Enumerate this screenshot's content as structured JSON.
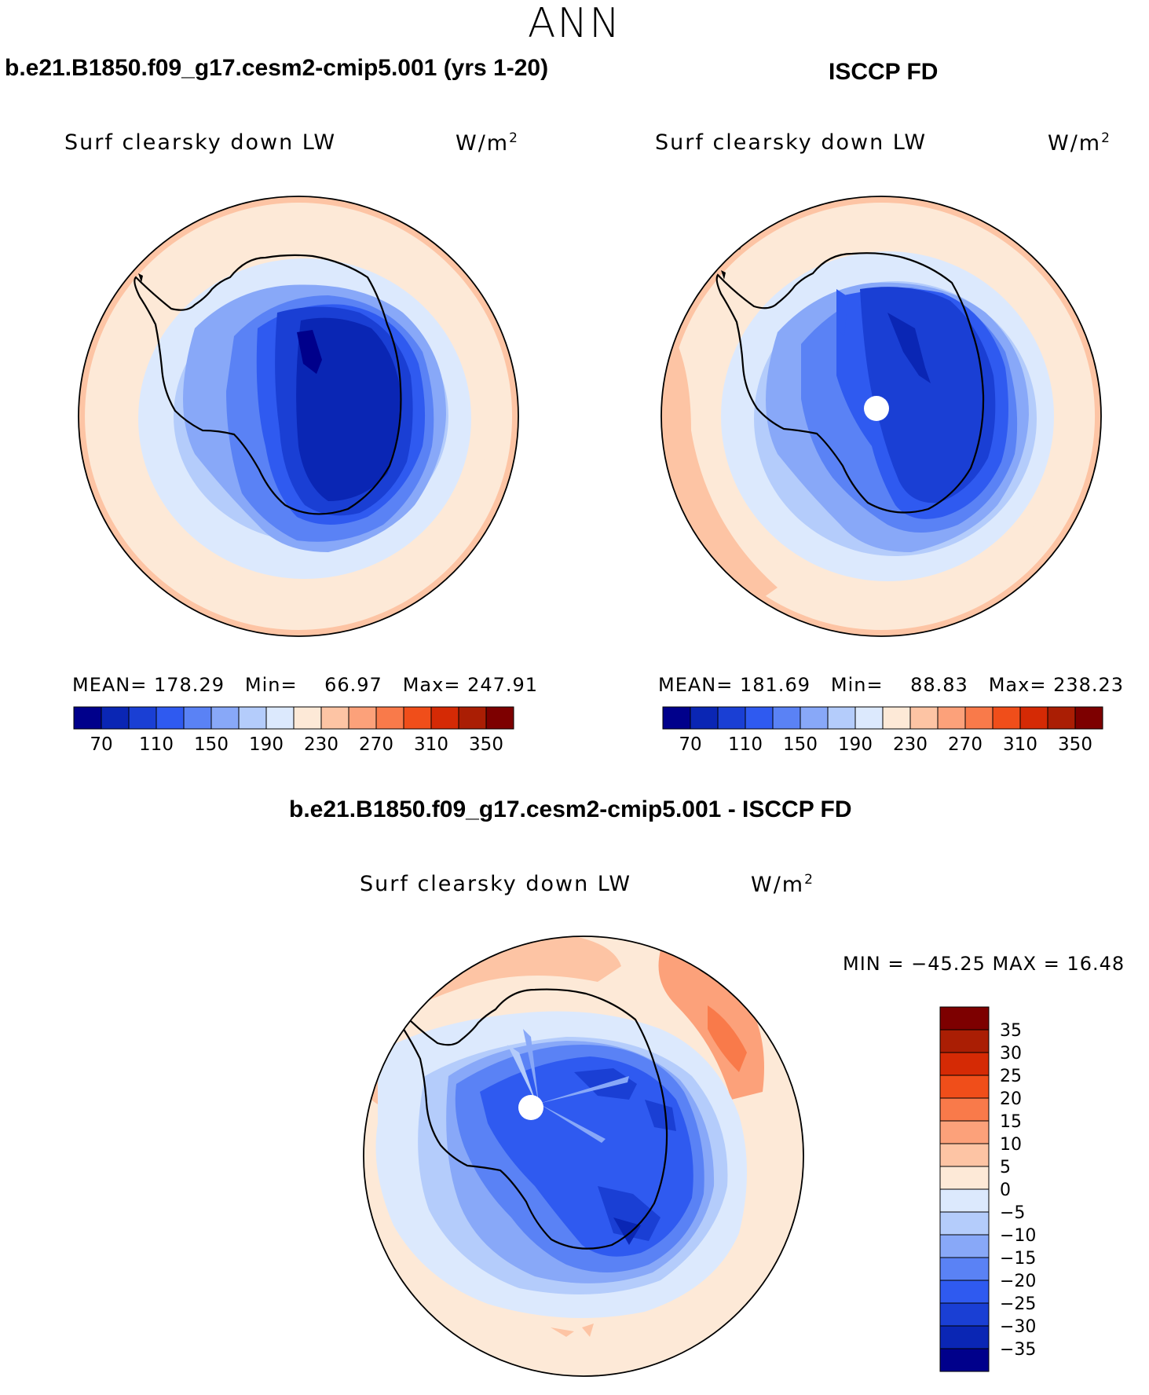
{
  "figure_title": "ANN",
  "panels": [
    {
      "title": "b.e21.B1850.f09_g17.cesm2-cmip5.001 (yrs 1-20)",
      "variable": "Surf clearsky down LW",
      "units": "W/m",
      "units_sup": "2",
      "mean_label": "MEAN=",
      "mean_value": "178.29",
      "min_label": "Min=",
      "min_value": "66.97",
      "max_label": "Max=",
      "max_value": "247.91"
    },
    {
      "title": "ISCCP FD",
      "variable": "Surf clearsky down LW",
      "units": "W/m",
      "units_sup": "2",
      "mean_label": "MEAN=",
      "mean_value": "181.69",
      "min_label": "Min=",
      "min_value": "88.83",
      "max_label": "Max=",
      "max_value": "238.23"
    }
  ],
  "diff_panel": {
    "title": "b.e21.B1850.f09_g17.cesm2-cmip5.001 - ISCCP FD",
    "variable": "Surf clearsky down LW",
    "units": "W/m",
    "units_sup": "2",
    "minmax_text": "MIN = −45.25 MAX =   16.48"
  },
  "colorbar_horizontal": {
    "colors": [
      "#00008b",
      "#0a26b4",
      "#1a3fd4",
      "#2f5af0",
      "#5a82f5",
      "#88a8f8",
      "#b4ccfb",
      "#dce9fd",
      "#fde9d7",
      "#fdc4a4",
      "#fca17a",
      "#f97a4a",
      "#f04e1a",
      "#d52a05",
      "#aa1e04",
      "#7d0000"
    ],
    "tick_labels": [
      "70",
      "110",
      "150",
      "190",
      "230",
      "270",
      "310",
      "350"
    ]
  },
  "colorbar_vertical": {
    "colors": [
      "#00008b",
      "#0a26b4",
      "#1a3fd4",
      "#2f5af0",
      "#5a82f5",
      "#88a8f8",
      "#b4ccfb",
      "#dce9fd",
      "#fde9d7",
      "#fdc4a4",
      "#fca17a",
      "#f97a4a",
      "#f04e1a",
      "#d52a05",
      "#aa1e04",
      "#7d0000"
    ],
    "tick_labels": [
      "−35",
      "−30",
      "−25",
      "−20",
      "−15",
      "−10",
      "−5",
      "0",
      "5",
      "10",
      "15",
      "20",
      "25",
      "30",
      "35"
    ]
  }
}
